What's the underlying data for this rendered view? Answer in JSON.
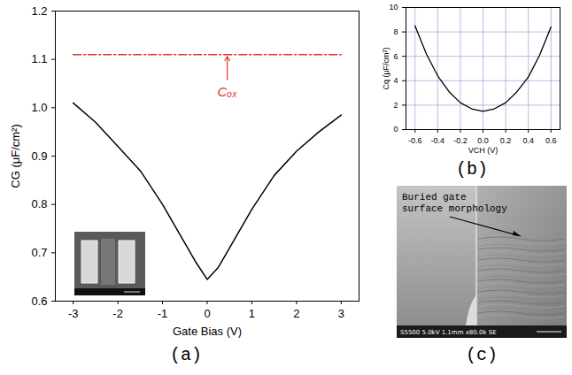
{
  "chart_data": [
    {
      "type": "line",
      "panel_label": "(a)",
      "x_label": "Gate Bias (V)",
      "y_label": "CG (μF/cm²)",
      "xlim": [
        -3.4,
        3.4
      ],
      "xticks": [
        -3,
        -2,
        -1,
        0,
        1,
        2,
        3
      ],
      "ylim": [
        0.6,
        1.2
      ],
      "yticks": [
        0.6,
        0.7,
        0.8,
        0.9,
        {
          "value": 1,
          "label": "1.0"
        },
        1.1,
        1.2
      ],
      "grid": false,
      "series": [
        {
          "color": "#000000",
          "line_style": "solid",
          "x": [
            -3,
            -2.5,
            -2,
            -1.5,
            -1,
            -0.5,
            -0.25,
            0,
            0.25,
            0.5,
            1,
            1.5,
            2,
            2.5,
            3
          ],
          "values": [
            1.01,
            0.97,
            0.92,
            0.87,
            0.8,
            0.72,
            0.68,
            0.645,
            0.67,
            0.71,
            0.79,
            0.86,
            0.91,
            0.95,
            0.985
          ]
        },
        {
          "color": "#e8302c",
          "line_style": "dashdot",
          "x": [
            -3,
            3
          ],
          "values": [
            1.11,
            1.11
          ]
        }
      ],
      "annotations": [
        {
          "text": "Cₒₓ",
          "x": 0.45,
          "y": 1.04
        }
      ]
    },
    {
      "type": "line",
      "panel_label": "(b)",
      "x_label": "VCH (V)",
      "y_label": "Cq (μF/cm²)",
      "xlim": [
        -0.68,
        0.68
      ],
      "xticks": [
        -0.6,
        -0.4,
        -0.2,
        {
          "value": 0,
          "label": "0.0"
        },
        0.2,
        0.4,
        0.6
      ],
      "ylim": [
        0,
        10
      ],
      "yticks": [
        0,
        2,
        4,
        6,
        8,
        10
      ],
      "grid": true,
      "series": [
        {
          "color": "#000000",
          "line_style": "solid",
          "x": [
            -0.6,
            -0.5,
            -0.4,
            -0.3,
            -0.2,
            -0.1,
            0,
            0.1,
            0.2,
            0.3,
            0.4,
            0.5,
            0.6
          ],
          "values": [
            8.5,
            6.2,
            4.4,
            3.1,
            2.2,
            1.7,
            1.5,
            1.7,
            2.2,
            3.1,
            4.3,
            6.1,
            8.4
          ]
        }
      ]
    }
  ],
  "sem_image": {
    "panel_label": "(c)",
    "annotation": "Buried gate surface morphology",
    "footer": "S5500 5.0kV 1.1mm x80.0k SE"
  }
}
